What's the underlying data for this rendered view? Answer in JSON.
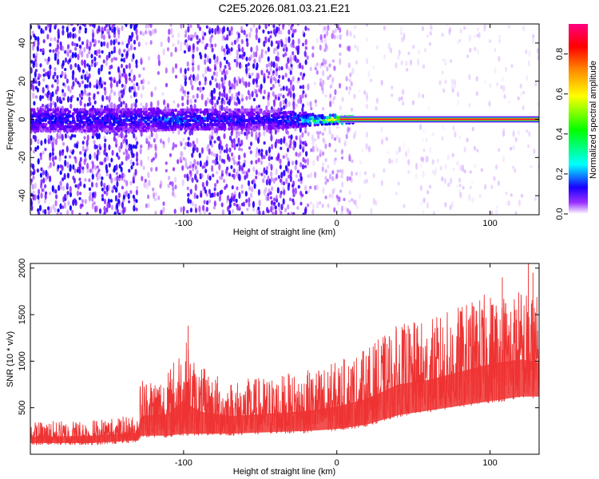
{
  "title": "C2E5.2026.081.03.21.E21",
  "chart_data": [
    {
      "type": "heatmap",
      "xlabel": "Height of straight line (km)",
      "ylabel": "Frequency (Hz)",
      "xlim": [
        -200,
        132
      ],
      "ylim": [
        -50,
        50
      ],
      "xticks": [
        -100,
        0,
        100
      ],
      "xtick_labels": [
        "-100",
        "0",
        "100"
      ],
      "yticks": [
        -40,
        -20,
        0,
        20,
        40
      ],
      "ytick_labels": [
        "-40",
        "-20",
        "0",
        "20",
        "40"
      ],
      "grid": false,
      "colorbar": {
        "label": "Normalized spectral amplitude",
        "range": [
          0,
          0.95
        ],
        "ticks": [
          0,
          0.2,
          0.4,
          0.6,
          0.8
        ],
        "tick_labels": [
          "0.0",
          "0.2",
          "0.4",
          "0.6",
          "0.8"
        ],
        "colormap": [
          "#ffffff",
          "#8000ff",
          "#0000ff",
          "#00ffff",
          "#00ff00",
          "#ffff00",
          "#ff8000",
          "#ff0000",
          "#ff0080"
        ]
      },
      "features": {
        "noise_regions": [
          {
            "x": [
              -200,
              -130
            ],
            "amplitude": 0.18
          },
          {
            "x": [
              -130,
              -100
            ],
            "amplitude": 0.1
          },
          {
            "x": [
              -100,
              -20
            ],
            "amplitude": 0.16
          },
          {
            "x": [
              -20,
              10
            ],
            "amplitude": 0.08
          },
          {
            "x": [
              10,
              132
            ],
            "amplitude": 0.04
          }
        ],
        "central_band": [
          {
            "x": -130,
            "amplitude": 0.25,
            "halfwidth_hz": 6
          },
          {
            "x": -100,
            "amplitude": 0.3,
            "halfwidth_hz": 5
          },
          {
            "x": -50,
            "amplitude": 0.22,
            "halfwidth_hz": 5
          },
          {
            "x": -30,
            "amplitude": 0.3,
            "halfwidth_hz": 4
          },
          {
            "x": -10,
            "amplitude": 0.5,
            "halfwidth_hz": 2.5
          },
          {
            "x": 10,
            "amplitude": 0.75,
            "halfwidth_hz": 1.8
          },
          {
            "x": 50,
            "amplitude": 0.85,
            "halfwidth_hz": 1.8
          },
          {
            "x": 132,
            "amplitude": 0.9,
            "halfwidth_hz": 1.8
          }
        ]
      },
      "series_color": "#ee3333"
    },
    {
      "type": "line",
      "xlabel": "Height of straight line (km)",
      "ylabel": "SNR (10 * v/v)",
      "xlim": [
        -200,
        132
      ],
      "ylim": [
        0,
        2050
      ],
      "xticks": [
        -100,
        0,
        100
      ],
      "xtick_labels": [
        "-100",
        "0",
        "100"
      ],
      "yticks": [
        500,
        1000,
        1500,
        2000
      ],
      "ytick_labels": [
        "500",
        "1000",
        "1500",
        "2000"
      ],
      "grid": false,
      "series_color": "#ee3333",
      "envelope": {
        "x": [
          -200,
          -160,
          -130,
          -128,
          -110,
          -100,
          -95,
          -90,
          -70,
          -40,
          -20,
          0,
          20,
          40,
          60,
          80,
          100,
          120,
          132
        ],
        "lower": [
          100,
          100,
          130,
          180,
          180,
          200,
          200,
          200,
          200,
          220,
          230,
          250,
          300,
          400,
          450,
          500,
          550,
          600,
          600
        ],
        "upper": [
          350,
          380,
          420,
          850,
          900,
          1300,
          1100,
          950,
          800,
          850,
          900,
          1000,
          1150,
          1400,
          1450,
          1600,
          1750,
          1800,
          1700
        ]
      },
      "spikes": [
        {
          "x": 125,
          "y": 2050
        },
        {
          "x": 128,
          "y": 1950
        },
        {
          "x": 108,
          "y": 1900
        },
        {
          "x": -97,
          "y": 1380
        }
      ]
    }
  ]
}
